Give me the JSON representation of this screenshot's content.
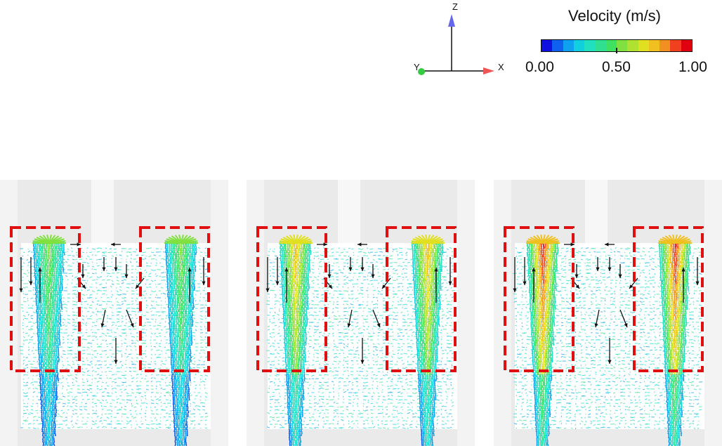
{
  "axes": {
    "z_label": "Z",
    "x_label": "X",
    "y_label": "Y"
  },
  "legend": {
    "title": "Velocity (m/s)",
    "min_label": "0.00",
    "mid_label": "0.50",
    "max_label": "1.00",
    "colors": [
      "#1010e0",
      "#1060f0",
      "#10a0f0",
      "#10d0e0",
      "#20e0c0",
      "#30e090",
      "#40e060",
      "#80e040",
      "#b0e030",
      "#e0e020",
      "#f0c020",
      "#f09020",
      "#f04020",
      "#e00010"
    ]
  },
  "panels": [
    {
      "name": "panel-low",
      "jet_intensity": 0.55
    },
    {
      "name": "panel-mid",
      "jet_intensity": 0.8
    },
    {
      "name": "panel-high",
      "jet_intensity": 1.0
    }
  ],
  "highlight_color": "#e01010"
}
